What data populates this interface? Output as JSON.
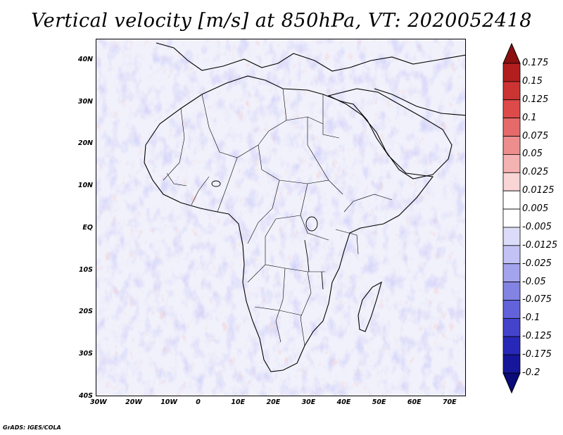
{
  "title": "Vertical velocity [m/s] at 850hPa, VT: 2020052418",
  "credit": "GrADS: IGES/COLA",
  "map": {
    "region": "Africa",
    "lon_range": [
      -30,
      75
    ],
    "lat_range": [
      -40,
      45
    ],
    "lon_ticks": [
      "30W",
      "20W",
      "10W",
      "0",
      "10E",
      "20E",
      "30E",
      "40E",
      "50E",
      "60E",
      "70E"
    ],
    "lat_ticks": [
      "40N",
      "30N",
      "20N",
      "10N",
      "EQ",
      "10S",
      "20S",
      "30S",
      "40S"
    ]
  },
  "colorbar": {
    "labels": [
      "0.175",
      "0.15",
      "0.125",
      "0.1",
      "0.075",
      "0.05",
      "0.025",
      "0.0125",
      "0.005",
      "-0.005",
      "-0.0125",
      "-0.025",
      "-0.05",
      "-0.075",
      "-0.1",
      "-0.125",
      "-0.175",
      "-0.2"
    ],
    "colors": [
      "#8b1010",
      "#b21e1e",
      "#cc3333",
      "#dd4a4a",
      "#e66a6a",
      "#ee8d8d",
      "#f5b2b2",
      "#fad5d5",
      "#ffffff",
      "#ffffff",
      "#dcdcfa",
      "#c2c2f5",
      "#a3a3ee",
      "#8383e4",
      "#6262da",
      "#4343cc",
      "#2828b8",
      "#16169a",
      "#0a0a78"
    ]
  }
}
